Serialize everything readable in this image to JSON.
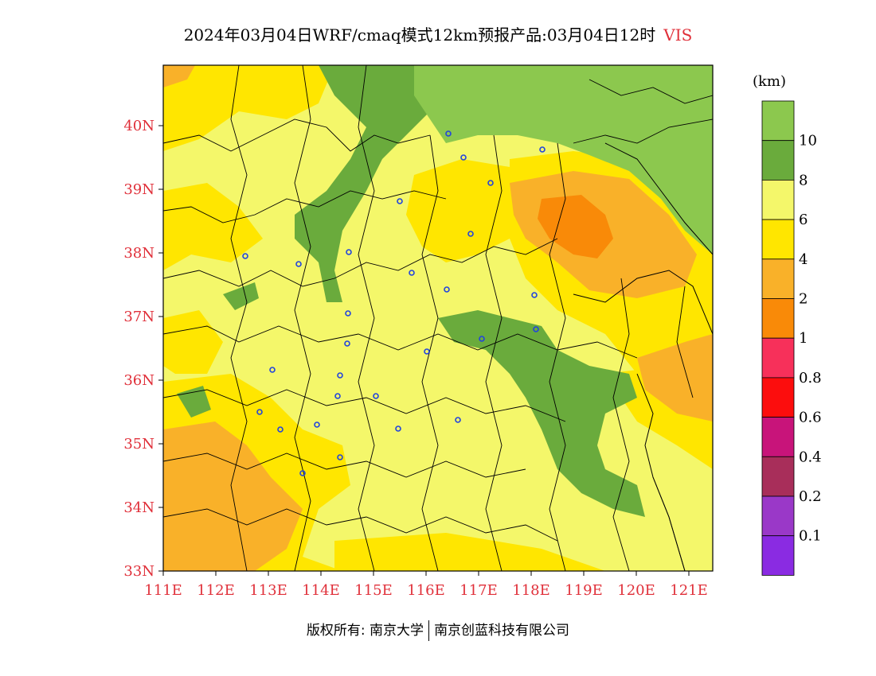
{
  "title": {
    "main": "2024年03月04日WRF/cmaq模式12km预报产品:03月04日12时",
    "variable": "VIS"
  },
  "legend": {
    "unit": "(km)",
    "levels": [
      {
        "label": "",
        "color": "#8cc84e"
      },
      {
        "label": "10",
        "color": "#6aab3c"
      },
      {
        "label": "8",
        "color": "#f4f76a"
      },
      {
        "label": "6",
        "color": "#ffe600"
      },
      {
        "label": "4",
        "color": "#f9b129"
      },
      {
        "label": "2",
        "color": "#f98a08"
      },
      {
        "label": "1",
        "color": "#f7305a"
      },
      {
        "label": "0.8",
        "color": "#fc0d0d"
      },
      {
        "label": "0.6",
        "color": "#c8147a"
      },
      {
        "label": "0.4",
        "color": "#a82e5a"
      },
      {
        "label": "0.2",
        "color": "#9a38c8"
      },
      {
        "label": "0.1",
        "color": "#8a2be2"
      }
    ]
  },
  "axes": {
    "lon_ticks": [
      "111E",
      "112E",
      "113E",
      "114E",
      "115E",
      "116E",
      "117E",
      "118E",
      "119E",
      "120E",
      "121E"
    ],
    "lat_ticks": [
      "33N",
      "34N",
      "35N",
      "36N",
      "37N",
      "38N",
      "39N",
      "40N"
    ],
    "tick_color": "#e0303a"
  },
  "footer": {
    "left": "版权所有: 南京大学",
    "right": "南京创蓝科技有限公司"
  },
  "colors": {
    "sea_green": "#8cc84e",
    "border": "#000000",
    "city_marker": "#2244dd"
  }
}
